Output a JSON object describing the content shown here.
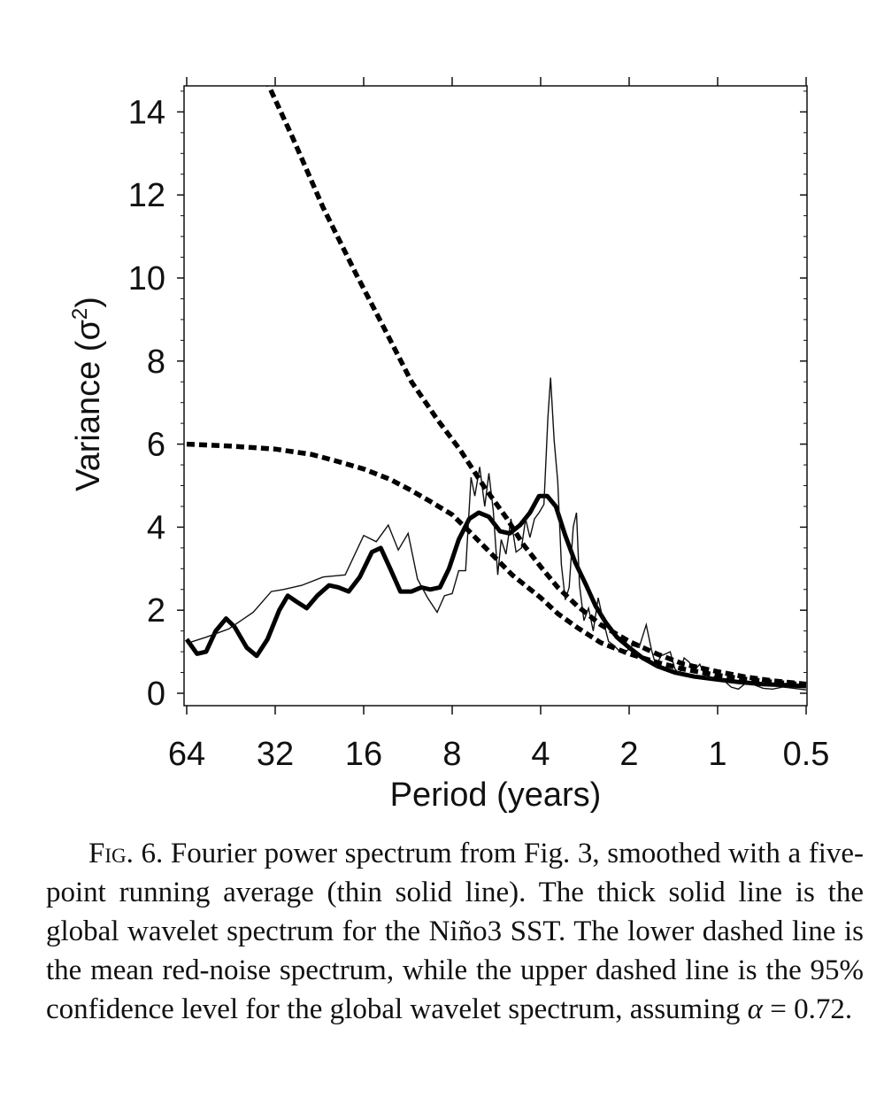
{
  "chart_data": {
    "type": "line",
    "xlabel": "Period (years)",
    "ylabel": "Variance (σ",
    "ylabel_sup": "2",
    "ylabel_close": ")",
    "x_scale": "log2-reversed",
    "xlim": [
      64,
      0.5
    ],
    "ylim": [
      0,
      15
    ],
    "x_ticks": [
      64,
      32,
      16,
      8,
      4,
      2,
      1,
      0.5
    ],
    "x_tick_labels": [
      "64",
      "32",
      "16",
      "8",
      "4",
      "2",
      "1",
      "0.5"
    ],
    "y_ticks": [
      0,
      2,
      4,
      6,
      8,
      10,
      12,
      14
    ],
    "y_tick_labels": [
      "0",
      "2",
      "4",
      "6",
      "8",
      "10",
      "12",
      "14"
    ],
    "grid": false,
    "legend": "none",
    "series": [
      {
        "style": "thick-solid",
        "points": [
          [
            64,
            1.3
          ],
          [
            59,
            0.95
          ],
          [
            55,
            1.0
          ],
          [
            51,
            1.5
          ],
          [
            47,
            1.8
          ],
          [
            44,
            1.6
          ],
          [
            40,
            1.1
          ],
          [
            37,
            0.9
          ],
          [
            34,
            1.3
          ],
          [
            31,
            2.0
          ],
          [
            29,
            2.35
          ],
          [
            27,
            2.2
          ],
          [
            25,
            2.05
          ],
          [
            23,
            2.35
          ],
          [
            21,
            2.6
          ],
          [
            19.5,
            2.55
          ],
          [
            18,
            2.45
          ],
          [
            16.5,
            2.8
          ],
          [
            15,
            3.4
          ],
          [
            14,
            3.5
          ],
          [
            13,
            3.0
          ],
          [
            12,
            2.45
          ],
          [
            11,
            2.45
          ],
          [
            10.2,
            2.55
          ],
          [
            9.5,
            2.5
          ],
          [
            8.8,
            2.55
          ],
          [
            8.2,
            3.0
          ],
          [
            7.6,
            3.7
          ],
          [
            7.0,
            4.2
          ],
          [
            6.5,
            4.35
          ],
          [
            6.0,
            4.25
          ],
          [
            5.5,
            3.9
          ],
          [
            5.1,
            3.85
          ],
          [
            4.7,
            4.05
          ],
          [
            4.35,
            4.35
          ],
          [
            4.05,
            4.75
          ],
          [
            3.8,
            4.75
          ],
          [
            3.55,
            4.5
          ],
          [
            3.3,
            3.8
          ],
          [
            3.05,
            3.15
          ],
          [
            2.8,
            2.6
          ],
          [
            2.6,
            2.1
          ],
          [
            2.4,
            1.7
          ],
          [
            2.2,
            1.35
          ],
          [
            2.0,
            1.1
          ],
          [
            1.8,
            0.85
          ],
          [
            1.6,
            0.65
          ],
          [
            1.4,
            0.5
          ],
          [
            1.2,
            0.4
          ],
          [
            1.0,
            0.33
          ],
          [
            0.85,
            0.27
          ],
          [
            0.7,
            0.22
          ],
          [
            0.6,
            0.2
          ],
          [
            0.5,
            0.17
          ]
        ]
      },
      {
        "style": "thin-solid",
        "points": [
          [
            64,
            1.2
          ],
          [
            55,
            1.35
          ],
          [
            46,
            1.55
          ],
          [
            38,
            1.95
          ],
          [
            33,
            2.45
          ],
          [
            30,
            2.5
          ],
          [
            26,
            2.6
          ],
          [
            22,
            2.8
          ],
          [
            18.5,
            2.85
          ],
          [
            16,
            3.8
          ],
          [
            14.5,
            3.65
          ],
          [
            13.2,
            4.05
          ],
          [
            12.2,
            3.45
          ],
          [
            11.3,
            3.85
          ],
          [
            10.5,
            2.75
          ],
          [
            9.7,
            2.3
          ],
          [
            9.0,
            1.95
          ],
          [
            8.5,
            2.35
          ],
          [
            8.0,
            2.4
          ],
          [
            7.6,
            2.95
          ],
          [
            7.2,
            2.95
          ],
          [
            6.9,
            5.2
          ],
          [
            6.7,
            4.75
          ],
          [
            6.45,
            5.45
          ],
          [
            6.2,
            4.5
          ],
          [
            6.0,
            5.3
          ],
          [
            5.8,
            4.4
          ],
          [
            5.6,
            2.85
          ],
          [
            5.45,
            3.7
          ],
          [
            5.25,
            3.35
          ],
          [
            5.05,
            4.2
          ],
          [
            4.85,
            3.4
          ],
          [
            4.65,
            3.5
          ],
          [
            4.5,
            4.2
          ],
          [
            4.35,
            3.75
          ],
          [
            4.2,
            4.2
          ],
          [
            4.05,
            4.35
          ],
          [
            3.9,
            4.55
          ],
          [
            3.78,
            6.65
          ],
          [
            3.7,
            7.6
          ],
          [
            3.6,
            6.1
          ],
          [
            3.5,
            5.1
          ],
          [
            3.4,
            3.1
          ],
          [
            3.3,
            2.25
          ],
          [
            3.2,
            2.55
          ],
          [
            3.1,
            4.0
          ],
          [
            3.02,
            4.35
          ],
          [
            2.95,
            2.6
          ],
          [
            2.85,
            1.75
          ],
          [
            2.75,
            2.05
          ],
          [
            2.65,
            1.5
          ],
          [
            2.55,
            2.3
          ],
          [
            2.45,
            1.75
          ],
          [
            2.35,
            1.25
          ],
          [
            2.25,
            1.15
          ],
          [
            2.15,
            1.0
          ],
          [
            2.05,
            1.0
          ],
          [
            1.95,
            1.15
          ],
          [
            1.85,
            1.1
          ],
          [
            1.75,
            1.65
          ],
          [
            1.68,
            1.05
          ],
          [
            1.62,
            0.65
          ],
          [
            1.56,
            0.9
          ],
          [
            1.5,
            0.95
          ],
          [
            1.45,
            1.0
          ],
          [
            1.4,
            0.6
          ],
          [
            1.35,
            0.45
          ],
          [
            1.3,
            0.85
          ],
          [
            1.25,
            0.75
          ],
          [
            1.2,
            0.55
          ],
          [
            1.15,
            0.7
          ],
          [
            1.1,
            0.4
          ],
          [
            1.05,
            0.35
          ],
          [
            1.0,
            0.45
          ],
          [
            0.95,
            0.3
          ],
          [
            0.9,
            0.15
          ],
          [
            0.85,
            0.1
          ],
          [
            0.8,
            0.25
          ],
          [
            0.75,
            0.2
          ],
          [
            0.7,
            0.12
          ],
          [
            0.65,
            0.1
          ],
          [
            0.6,
            0.15
          ],
          [
            0.55,
            0.12
          ],
          [
            0.5,
            0.08
          ]
        ]
      },
      {
        "style": "dashed-lower",
        "points": [
          [
            64,
            6.0
          ],
          [
            45,
            5.95
          ],
          [
            32,
            5.88
          ],
          [
            24,
            5.75
          ],
          [
            20,
            5.6
          ],
          [
            16,
            5.4
          ],
          [
            13,
            5.15
          ],
          [
            11,
            4.88
          ],
          [
            9.5,
            4.62
          ],
          [
            8,
            4.3
          ],
          [
            7,
            3.9
          ],
          [
            6,
            3.42
          ],
          [
            5,
            2.85
          ],
          [
            4,
            2.3
          ],
          [
            3.5,
            1.92
          ],
          [
            3,
            1.58
          ],
          [
            2.5,
            1.22
          ],
          [
            2,
            0.95
          ],
          [
            1.6,
            0.74
          ],
          [
            1.3,
            0.58
          ],
          [
            1,
            0.43
          ],
          [
            0.8,
            0.34
          ],
          [
            0.65,
            0.27
          ],
          [
            0.5,
            0.2
          ]
        ]
      },
      {
        "style": "dashed-upper",
        "points": [
          [
            34.5,
            14.8
          ],
          [
            28,
            13.4
          ],
          [
            22,
            11.7
          ],
          [
            17,
            10.1
          ],
          [
            14,
            8.95
          ],
          [
            11,
            7.5
          ],
          [
            9,
            6.6
          ],
          [
            7.5,
            5.85
          ],
          [
            6.2,
            4.95
          ],
          [
            5.2,
            4.2
          ],
          [
            4.6,
            3.6
          ],
          [
            4.0,
            3.05
          ],
          [
            3.5,
            2.55
          ],
          [
            3.0,
            2.1
          ],
          [
            2.5,
            1.65
          ],
          [
            2.0,
            1.25
          ],
          [
            1.6,
            0.94
          ],
          [
            1.3,
            0.7
          ],
          [
            1.0,
            0.52
          ],
          [
            0.8,
            0.39
          ],
          [
            0.65,
            0.3
          ],
          [
            0.5,
            0.22
          ]
        ]
      }
    ]
  },
  "caption": {
    "fig_label": "Fig.",
    "fig_number": "6.",
    "text_before_alpha": "Fourier power spectrum from Fig. 3, smoothed with a five-point running average (thin solid line). The thick solid line is the global wavelet spectrum for the Niño3 SST. The lower dashed line is the mean red-noise spectrum, while the upper dashed line is the 95% confidence level for the global wavelet spectrum, assuming",
    "alpha_symbol": "α",
    "text_after_alpha": "= 0.72."
  }
}
